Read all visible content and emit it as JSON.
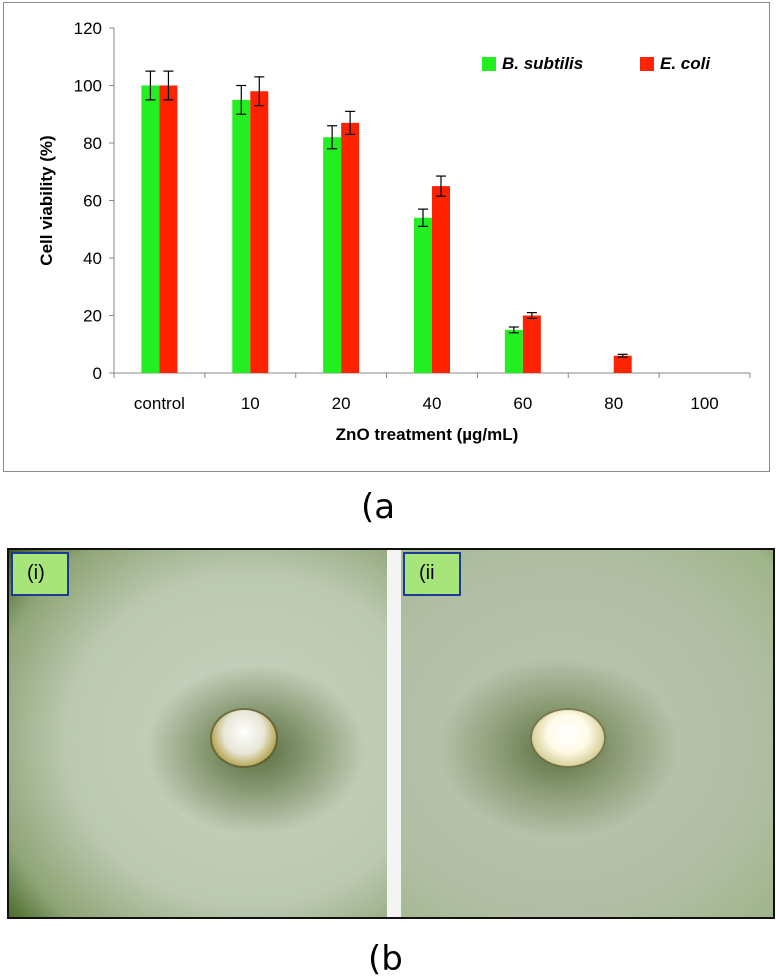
{
  "chart_data": {
    "type": "bar",
    "categories": [
      "control",
      "10",
      "20",
      "40",
      "60",
      "80",
      "100"
    ],
    "series": [
      {
        "name": "B. subtilis",
        "color": "#22ee22",
        "values": [
          100,
          95,
          82,
          54,
          15,
          0,
          0
        ],
        "errors": [
          5,
          5,
          4,
          3,
          1,
          0,
          0
        ]
      },
      {
        "name": "E. coli",
        "color": "#ff2200",
        "values": [
          100,
          98,
          87,
          65,
          20,
          6,
          0
        ],
        "errors": [
          5,
          5,
          4,
          3.5,
          1,
          0.5,
          0
        ]
      }
    ],
    "xlabel": "ZnO treatment  (µg/mL)",
    "ylabel": "Cell viability (%)",
    "ylim": [
      0,
      120
    ],
    "yticks": [
      "0",
      "20",
      "40",
      "60",
      "80",
      "100",
      "120"
    ],
    "grid": false,
    "legend_position": "top-right"
  },
  "captions": {
    "a": "(a",
    "b": "(b"
  },
  "photo_panels": {
    "left_label": "(i)",
    "right_label": "(ii"
  }
}
